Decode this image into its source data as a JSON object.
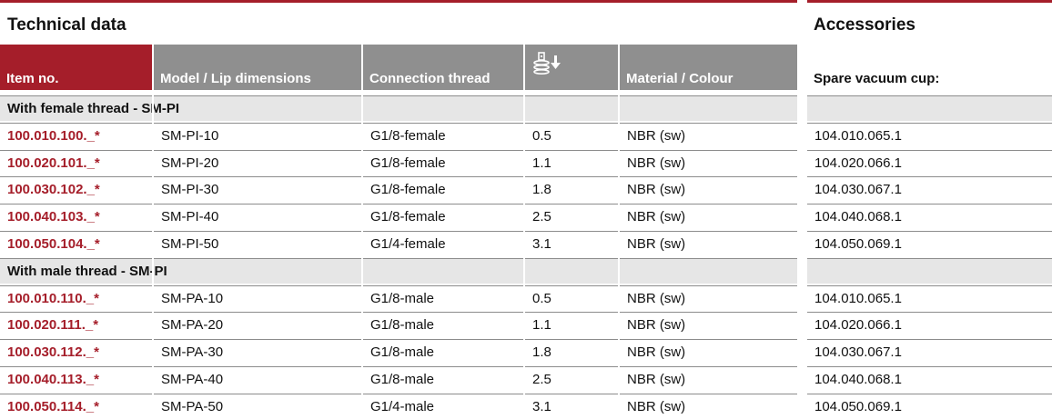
{
  "left": {
    "title": "Technical data",
    "headers": {
      "item": "Item no.",
      "model": "Model / Lip dimensions",
      "thread": "Connection thread",
      "weight_icon": "weight-icon",
      "material": "Material / Colour"
    },
    "sections": [
      {
        "label": "With female thread - SM-PI",
        "rows": [
          {
            "item": "100.010.100._*",
            "model": "SM-PI-10",
            "thread": "G1/8-female",
            "weight": "0.5",
            "material": "NBR (sw)"
          },
          {
            "item": "100.020.101._*",
            "model": "SM-PI-20",
            "thread": "G1/8-female",
            "weight": "1.1",
            "material": "NBR (sw)"
          },
          {
            "item": "100.030.102._*",
            "model": "SM-PI-30",
            "thread": "G1/8-female",
            "weight": "1.8",
            "material": "NBR (sw)"
          },
          {
            "item": "100.040.103._*",
            "model": "SM-PI-40",
            "thread": "G1/8-female",
            "weight": "2.5",
            "material": "NBR (sw)"
          },
          {
            "item": "100.050.104._*",
            "model": "SM-PI-50",
            "thread": "G1/4-female",
            "weight": "3.1",
            "material": "NBR (sw)"
          }
        ]
      },
      {
        "label": "With male thread - SM-PI",
        "rows": [
          {
            "item": "100.010.110._*",
            "model": "SM-PA-10",
            "thread": "G1/8-male",
            "weight": "0.5",
            "material": "NBR (sw)"
          },
          {
            "item": "100.020.111._*",
            "model": "SM-PA-20",
            "thread": "G1/8-male",
            "weight": "1.1",
            "material": "NBR (sw)"
          },
          {
            "item": "100.030.112._*",
            "model": "SM-PA-30",
            "thread": "G1/8-male",
            "weight": "1.8",
            "material": "NBR (sw)"
          },
          {
            "item": "100.040.113._*",
            "model": "SM-PA-40",
            "thread": "G1/8-male",
            "weight": "2.5",
            "material": "NBR (sw)"
          },
          {
            "item": "100.050.114._*",
            "model": "SM-PA-50",
            "thread": "G1/4-male",
            "weight": "3.1",
            "material": "NBR (sw)"
          }
        ]
      }
    ]
  },
  "right": {
    "title": "Accessories",
    "header": "Spare vacuum cup:",
    "sections": [
      {
        "rows": [
          "104.010.065.1",
          "104.020.066.1",
          "104.030.067.1",
          "104.040.068.1",
          "104.050.069.1"
        ]
      },
      {
        "rows": [
          "104.010.065.1",
          "104.020.066.1",
          "104.030.067.1",
          "104.040.068.1",
          "104.050.069.1"
        ]
      }
    ]
  },
  "colors": {
    "accent": "#a51e2a",
    "header_gray": "#8f8f8f",
    "section_bg": "#e6e6e6"
  }
}
